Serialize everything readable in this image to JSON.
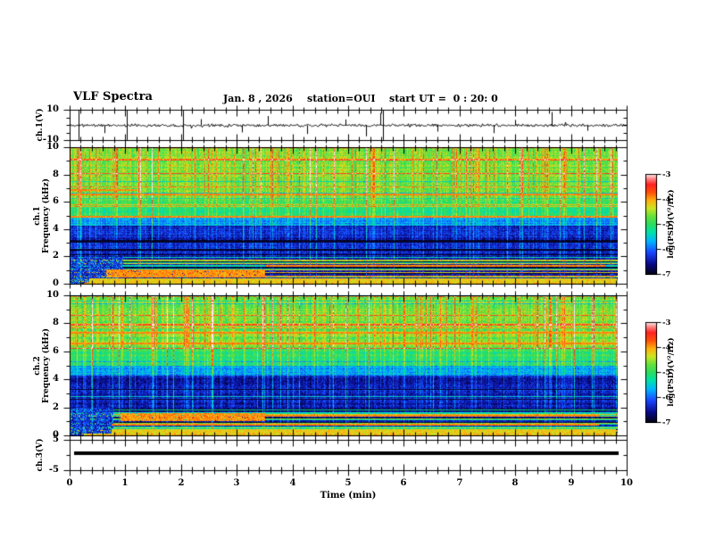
{
  "header": {
    "title": "VLF Spectra",
    "date": "Jan. 8 , 2026",
    "station": "station=OUI",
    "start_ut": "start UT =  0 : 20: 0"
  },
  "time_axis": {
    "label": "Time (min)",
    "min": 0,
    "max": 10,
    "major_step": 1,
    "minor_step": 0.2,
    "tick_labels": [
      "0",
      "1",
      "2",
      "3",
      "4",
      "5",
      "6",
      "7",
      "8",
      "9",
      "10"
    ]
  },
  "colorbar": {
    "label": "log(PSD)(V²/Hz)",
    "tick_labels": [
      "-3",
      "-4",
      "-5",
      "-6",
      "-7"
    ],
    "z_min": -7,
    "z_max": -3
  },
  "panels": [
    {
      "id": "ch1_voltage",
      "ylabel": "ch.1(V)",
      "ymin": -10,
      "ymax": 10,
      "yticks_major": [
        10,
        -10
      ],
      "ytick_labels": [
        "10",
        "-10"
      ],
      "yticks_minor": [
        5,
        0,
        -5
      ]
    },
    {
      "id": "ch1_spectrogram",
      "ylabel_line1": "ch.1",
      "ylabel_line2": "Frequency (kHz)",
      "ymin": 0,
      "ymax": 10,
      "yticks_major": [
        0,
        2,
        4,
        6,
        8,
        10
      ],
      "ytick_labels": [
        "0",
        "2",
        "4",
        "6",
        "8",
        "10"
      ],
      "yticks_minor": [
        1,
        3,
        5,
        7,
        9
      ]
    },
    {
      "id": "ch2_spectrogram",
      "ylabel_line1": "ch.2",
      "ylabel_line2": "Frequency (kHz)",
      "ymin": 0,
      "ymax": 10,
      "yticks_major": [
        0,
        2,
        4,
        6,
        8,
        10
      ],
      "ytick_labels": [
        "0",
        "2",
        "4",
        "6",
        "8",
        "10"
      ],
      "yticks_minor": [
        1,
        3,
        5,
        7,
        9
      ]
    },
    {
      "id": "ch3_voltage",
      "ylabel": "ch.3(V)",
      "ymin": -5,
      "ymax": 5,
      "yticks_major": [
        5,
        -5
      ],
      "ytick_labels": [
        "5",
        "-5"
      ],
      "yticks_minor": [
        0
      ]
    }
  ],
  "chart_data": [
    {
      "type": "line",
      "name": "ch.1 voltage waveform",
      "x_range_min": [
        0,
        10
      ],
      "y_range_V": [
        -10,
        10
      ],
      "baseline_V": 0,
      "noise_amp_V": 0.55,
      "seed": 11,
      "spikes": [
        {
          "t": 0.62,
          "a": -5
        },
        {
          "t": 1.03,
          "a": -8.5
        },
        {
          "t": 2.35,
          "a": 4
        },
        {
          "t": 3.1,
          "a": -4.5
        },
        {
          "t": 3.55,
          "a": 6
        },
        {
          "t": 4.27,
          "a": -5.5
        },
        {
          "t": 4.95,
          "a": 3.8
        },
        {
          "t": 5.32,
          "a": -7
        },
        {
          "t": 5.58,
          "a": 8
        },
        {
          "t": 6.6,
          "a": -4
        },
        {
          "t": 7.62,
          "a": -5
        },
        {
          "t": 8.0,
          "a": 3.5
        },
        {
          "t": 8.66,
          "a": 8.5
        },
        {
          "t": 9.3,
          "a": -3.5
        }
      ],
      "full_spikes_t": [
        0.16,
        1.02,
        2.03,
        5.63
      ]
    },
    {
      "type": "heatmap",
      "name": "ch.1 VLF spectrogram",
      "x_range_min": [
        0,
        10
      ],
      "y_range_kHz": [
        0,
        10
      ],
      "z_log_psd_range": [
        -7,
        -3
      ],
      "colormap": "rainbow black-blue-cyan-green-yellow-red-white",
      "seed": 101,
      "bands": [
        {
          "f": [
            6.2,
            10.01
          ],
          "level": -4.55,
          "streak": 1.0
        },
        {
          "f": [
            5.0,
            6.2
          ],
          "level": -4.95,
          "streak": 0.7
        },
        {
          "f": [
            4.3,
            5.0
          ],
          "level": -5.7,
          "streak": 0.55
        },
        {
          "f": [
            2.0,
            4.3
          ],
          "level": -6.35,
          "streak": 0.5
        },
        {
          "f": [
            0,
            2.0
          ],
          "level": -6.0,
          "streak": 0.35
        }
      ],
      "features": {
        "left_dark_until_min": 0.95,
        "red_lines": [
          {
            "f": 6.9,
            "x": [
              0,
              1.2
            ]
          },
          {
            "f": 6.55,
            "x": [
              0,
              9.83
            ]
          },
          {
            "f": 4.95,
            "x": [
              0,
              9.83
            ]
          },
          {
            "f": 1.35,
            "x": [
              3.5,
              9.6
            ]
          },
          {
            "f": 0.08,
            "x": [
              0.3,
              9.83
            ]
          }
        ],
        "dark_lines": [
          {
            "f": 2.5
          },
          {
            "f": 3.1
          }
        ],
        "red_patch": {
          "f": [
            0.5,
            1.05
          ],
          "x": [
            0.65,
            3.5
          ]
        },
        "yellow_band": {
          "f": [
            0.12,
            0.42
          ],
          "x": [
            0.35,
            9.82
          ]
        }
      }
    },
    {
      "type": "heatmap",
      "name": "ch.2 VLF spectrogram",
      "x_range_min": [
        0,
        10
      ],
      "y_range_kHz": [
        0,
        10
      ],
      "z_log_psd_range": [
        -7,
        -3
      ],
      "colormap": "rainbow black-blue-cyan-green-yellow-red-white",
      "seed": 202,
      "bands": [
        {
          "f": [
            6.2,
            10.01
          ],
          "level": -4.55,
          "streak": 1.0
        },
        {
          "f": [
            5.0,
            6.2
          ],
          "level": -4.95,
          "streak": 0.7
        },
        {
          "f": [
            4.3,
            5.0
          ],
          "level": -5.7,
          "streak": 0.55
        },
        {
          "f": [
            2.0,
            4.3
          ],
          "level": -6.35,
          "streak": 0.5
        },
        {
          "f": [
            0,
            2.0
          ],
          "level": -6.0,
          "streak": 0.35
        }
      ],
      "features": {
        "left_dark_until_min": 0.78,
        "red_lines": [
          {
            "f": 7.35,
            "x": [
              0,
              9.83
            ]
          },
          {
            "f": 6.6,
            "x": [
              0,
              9.83
            ]
          },
          {
            "f": 1.45,
            "x": [
              3.5,
              9.5
            ]
          },
          {
            "f": 0.8,
            "x": [
              0.75,
              9.5
            ]
          },
          {
            "f": 0.08,
            "x": [
              0.3,
              9.83
            ]
          }
        ],
        "dark_lines": [
          {
            "f": 2.6
          },
          {
            "f": 3.3
          }
        ],
        "red_patch": {
          "f": [
            1.05,
            1.62
          ],
          "x": [
            0.9,
            3.5
          ]
        },
        "yellow_band": {
          "f": [
            0.1,
            0.5
          ],
          "x": [
            0.75,
            9.8
          ]
        }
      }
    },
    {
      "type": "line",
      "name": "ch.3 voltage (flat)",
      "x_range_min": [
        0,
        10
      ],
      "y_range_V": [
        -5,
        5
      ],
      "constant_value_V": 0.6,
      "x_span_min": [
        0.08,
        9.85
      ],
      "line_thickness_px": 4
    }
  ]
}
